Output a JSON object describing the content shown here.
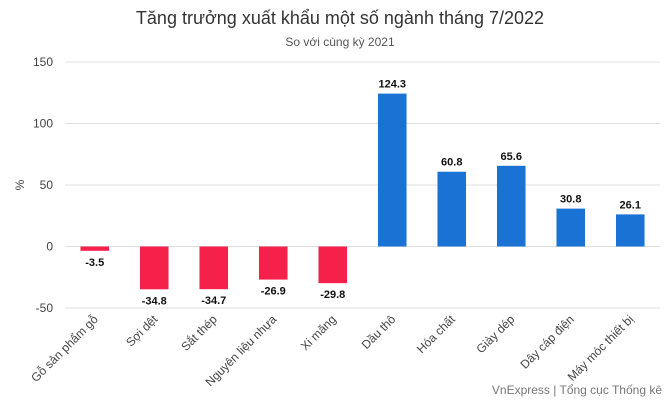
{
  "chart_data": {
    "type": "bar",
    "title": "Tăng trưởng xuất khẩu một số ngành tháng 7/2022",
    "subtitle": "So với cùng kỳ 2021",
    "y_label": "%",
    "source": "VnExpress | Tổng cục Thống kê",
    "categories": [
      "Gỗ sản phẩm gỗ",
      "Sợi dệt",
      "Sắt thép",
      "Nguyên liệu nhựa",
      "Xi măng",
      "Dầu thô",
      "Hóa chất",
      "Giày dép",
      "Dây cáp điện",
      "Máy móc thiết bị"
    ],
    "values": [
      -3.5,
      -34.8,
      -34.7,
      -26.9,
      -29.8,
      124.3,
      60.8,
      65.6,
      30.8,
      26.1
    ],
    "colors": [
      "#f5214b",
      "#f5214b",
      "#f5214b",
      "#f5214b",
      "#f5214b",
      "#1a73d4",
      "#1a73d4",
      "#1a73d4",
      "#1a73d4",
      "#1a73d4"
    ],
    "ylim": [
      -50,
      150
    ],
    "yticks": [
      -50,
      0,
      50,
      100,
      150
    ],
    "grid": true
  }
}
